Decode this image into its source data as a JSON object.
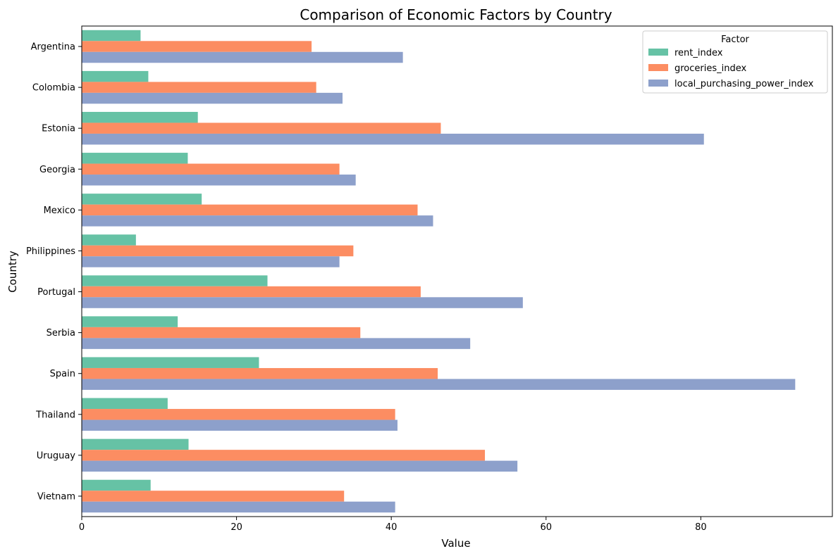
{
  "chart_data": {
    "type": "bar",
    "orientation": "horizontal",
    "title": "Comparison of Economic Factors by Country",
    "xlabel": "Value",
    "ylabel": "Country",
    "xlim": [
      0,
      97
    ],
    "xticks": [
      0,
      20,
      40,
      60,
      80
    ],
    "grid": false,
    "legend": {
      "title": "Factor",
      "placement": "top-right"
    },
    "categories": [
      "Argentina",
      "Colombia",
      "Estonia",
      "Georgia",
      "Mexico",
      "Philippines",
      "Portugal",
      "Serbia",
      "Spain",
      "Thailand",
      "Uruguay",
      "Vietnam"
    ],
    "series": [
      {
        "name": "rent_index",
        "color": "#66c2a5",
        "values": [
          7.6,
          8.6,
          15.0,
          13.7,
          15.5,
          7.0,
          24.0,
          12.4,
          22.9,
          11.1,
          13.8,
          8.9
        ]
      },
      {
        "name": "groceries_index",
        "color": "#fc8d62",
        "values": [
          29.7,
          30.3,
          46.4,
          33.3,
          43.4,
          35.1,
          43.8,
          36.0,
          46.0,
          40.5,
          52.1,
          33.9
        ]
      },
      {
        "name": "local_purchasing_power_index",
        "color": "#8da0cb",
        "values": [
          41.5,
          33.7,
          80.4,
          35.4,
          45.4,
          33.3,
          57.0,
          50.2,
          92.2,
          40.8,
          56.3,
          40.5
        ]
      }
    ]
  }
}
